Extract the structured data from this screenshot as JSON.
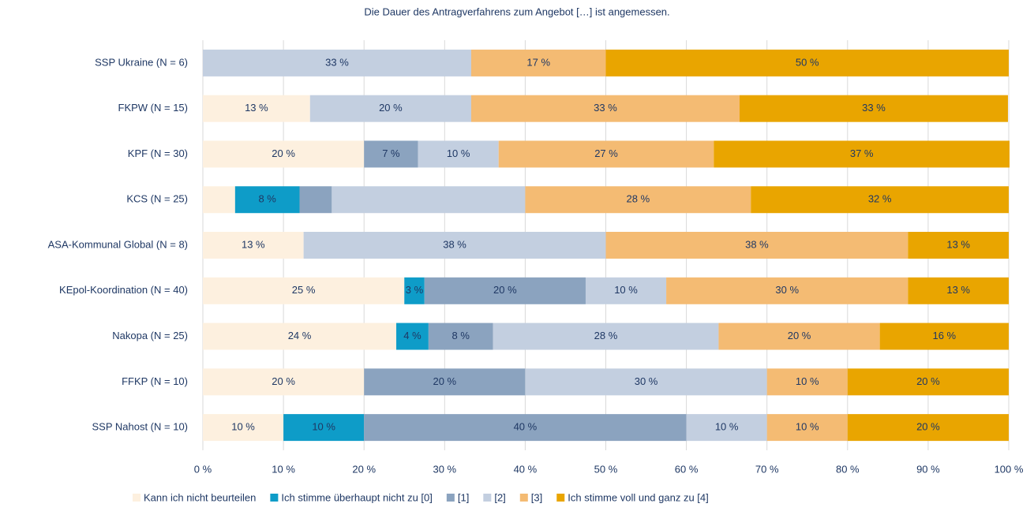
{
  "chart_data": {
    "type": "bar",
    "orientation": "horizontal",
    "stacked": true,
    "title": "Die Dauer des Antragverfahrens zum Angebot […] ist angemessen.",
    "categories": [
      "SSP Ukraine (N = 6)",
      "FKPW (N = 15)",
      "KPF (N = 30)",
      "KCS (N = 25)",
      "ASA-Kommunal Global (N = 8)",
      "KEpol-Koordination (N = 40)",
      "Nakopa (N = 25)",
      "FFKP (N = 10)",
      "SSP Nahost (N = 10)"
    ],
    "series": [
      {
        "name": "Kann ich nicht beurteilen",
        "color": "#fdf0df",
        "values": [
          0,
          13.3,
          20,
          4,
          12.5,
          25,
          24,
          20,
          10
        ],
        "value_labels": [
          null,
          "13 %",
          "20 %",
          null,
          "13 %",
          "25 %",
          "24 %",
          "20 %",
          "10 %"
        ]
      },
      {
        "name": "Ich stimme überhaupt nicht zu [0]",
        "color": "#0e9cc8",
        "values": [
          0,
          0,
          0,
          8,
          0,
          2.5,
          4,
          0,
          10
        ],
        "value_labels": [
          null,
          null,
          null,
          "8 %",
          null,
          "3 %",
          "4 %",
          null,
          "10 %"
        ]
      },
      {
        "name": "[1]",
        "color": "#8ba3bf",
        "values": [
          0,
          0,
          6.7,
          4,
          0,
          20,
          8,
          20,
          40
        ],
        "value_labels": [
          null,
          null,
          "7 %",
          null,
          null,
          "20 %",
          "8 %",
          "20 %",
          "40 %"
        ]
      },
      {
        "name": "[2]",
        "color": "#c3cfe0",
        "values": [
          33.3,
          20,
          10,
          24,
          37.5,
          10,
          28,
          30,
          10
        ],
        "value_labels": [
          "33 %",
          "20 %",
          "10 %",
          null,
          "38 %",
          "10 %",
          "28 %",
          "30 %",
          "10 %"
        ]
      },
      {
        "name": "[3]",
        "color": "#f4bb73",
        "values": [
          16.7,
          33.3,
          26.7,
          28,
          37.5,
          30,
          20,
          10,
          10
        ],
        "value_labels": [
          "17 %",
          "33 %",
          "27 %",
          "28 %",
          "38 %",
          "30 %",
          "20 %",
          "10 %",
          "10 %"
        ]
      },
      {
        "name": "Ich stimme voll und ganz zu [4]",
        "color": "#e9a500",
        "values": [
          50,
          33.3,
          36.7,
          32,
          12.5,
          12.5,
          16,
          20,
          20
        ],
        "value_labels": [
          "50 %",
          "33 %",
          "37 %",
          "32 %",
          "13 %",
          "13 %",
          "16 %",
          "20 %",
          "20 %"
        ]
      }
    ],
    "xlim": [
      0,
      100
    ],
    "xticks": [
      {
        "value": 0,
        "label": "0 %"
      },
      {
        "value": 10,
        "label": "10 %"
      },
      {
        "value": 20,
        "label": "20 %"
      },
      {
        "value": 30,
        "label": "30 %"
      },
      {
        "value": 40,
        "label": "40 %"
      },
      {
        "value": 50,
        "label": "50 %"
      },
      {
        "value": 60,
        "label": "60 %"
      },
      {
        "value": 70,
        "label": "70 %"
      },
      {
        "value": 80,
        "label": "80 %"
      },
      {
        "value": 90,
        "label": "90 %"
      },
      {
        "value": 100,
        "label": "100 %"
      }
    ],
    "grid": true,
    "legend": "bottom"
  }
}
